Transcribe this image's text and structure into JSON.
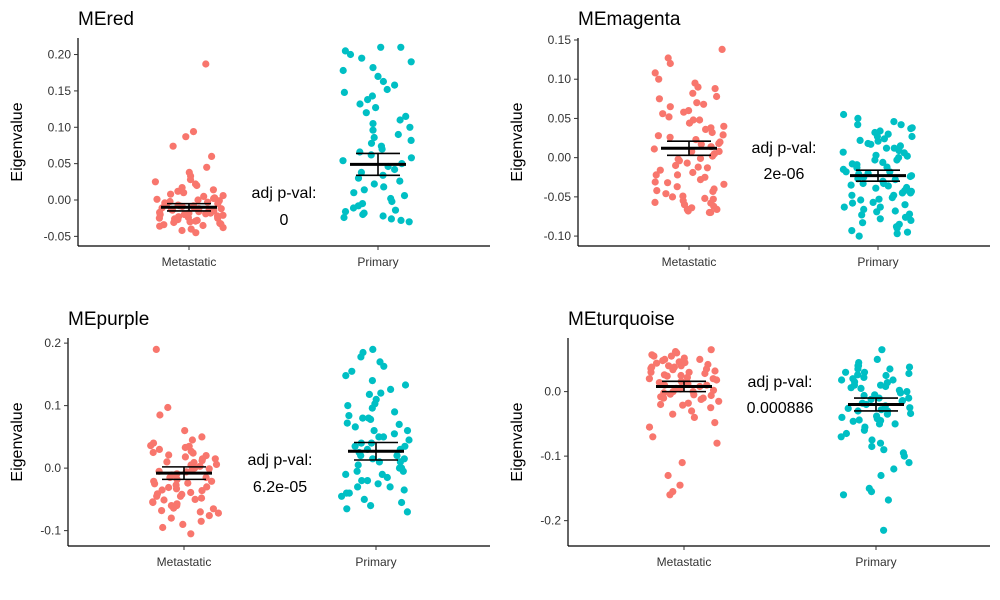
{
  "chart_data": [
    {
      "type": "scatter",
      "title": "MEred",
      "ylabel": "Eigenvalue",
      "categories": [
        "Metastatic",
        "Primary"
      ],
      "ylim": [
        -0.055,
        0.22
      ],
      "yticks": [
        -0.05,
        0.0,
        0.05,
        0.1,
        0.15,
        0.2
      ],
      "ytick_labels": [
        "-0.05",
        "0.00",
        "0.05",
        "0.10",
        "0.15",
        "0.20"
      ],
      "annotation": [
        "adj p-val:",
        "0"
      ],
      "series": [
        {
          "name": "Metastatic",
          "color": "#F8766D",
          "mean": -0.01,
          "ci": [
            -0.015,
            -0.005
          ],
          "values": [
            0.187,
            0.094,
            0.087,
            0.074,
            0.06,
            0.045,
            0.038,
            0.033,
            0.028,
            0.025,
            0.022,
            0.02,
            0.017,
            0.014,
            0.012,
            0.01,
            0.008,
            0.006,
            0.005,
            0.003,
            0.002,
            0.001,
            0.0,
            -0.001,
            -0.002,
            -0.003,
            -0.004,
            -0.005,
            -0.006,
            -0.007,
            -0.008,
            -0.008,
            -0.009,
            -0.01,
            -0.011,
            -0.012,
            -0.012,
            -0.013,
            -0.014,
            -0.015,
            -0.015,
            -0.016,
            -0.017,
            -0.018,
            -0.018,
            -0.019,
            -0.02,
            -0.02,
            -0.021,
            -0.022,
            -0.022,
            -0.023,
            -0.024,
            -0.025,
            -0.025,
            -0.026,
            -0.027,
            -0.028,
            -0.029,
            -0.03,
            -0.031,
            -0.032,
            -0.033,
            -0.034,
            -0.035,
            -0.036,
            -0.038,
            -0.04,
            -0.042,
            -0.045
          ]
        },
        {
          "name": "Primary",
          "color": "#00BFC4",
          "mean": 0.049,
          "ci": [
            0.034,
            0.064
          ],
          "values": [
            0.21,
            0.21,
            0.205,
            0.2,
            0.195,
            0.19,
            0.182,
            0.178,
            0.17,
            0.163,
            0.158,
            0.152,
            0.148,
            0.143,
            0.138,
            0.132,
            0.127,
            0.12,
            0.115,
            0.11,
            0.105,
            0.1,
            0.096,
            0.09,
            0.086,
            0.082,
            0.078,
            0.074,
            0.07,
            0.066,
            0.062,
            0.058,
            0.054,
            0.05,
            0.046,
            0.042,
            0.038,
            0.034,
            0.03,
            0.026,
            0.022,
            0.018,
            0.014,
            0.01,
            0.006,
            0.002,
            -0.002,
            -0.005,
            -0.008,
            -0.011,
            -0.014,
            -0.016,
            -0.018,
            -0.02,
            -0.022,
            -0.024,
            -0.026,
            -0.028,
            -0.03
          ]
        }
      ]
    },
    {
      "type": "scatter",
      "title": "MEmagenta",
      "ylabel": "Eigenvalue",
      "categories": [
        "Metastatic",
        "Primary"
      ],
      "ylim": [
        -0.105,
        0.15
      ],
      "yticks": [
        -0.1,
        -0.05,
        0.0,
        0.05,
        0.1,
        0.15
      ],
      "ytick_labels": [
        "-0.10",
        "-0.05",
        "0.00",
        "0.05",
        "0.10",
        "0.15"
      ],
      "annotation": [
        "adj p-val:",
        "2e-06"
      ],
      "series": [
        {
          "name": "Metastatic",
          "color": "#F8766D",
          "mean": 0.012,
          "ci": [
            0.003,
            0.021
          ],
          "values": [
            0.138,
            0.127,
            0.12,
            0.108,
            0.1,
            0.095,
            0.088,
            0.082,
            0.075,
            0.07,
            0.065,
            0.06,
            0.056,
            0.052,
            0.048,
            0.044,
            0.04,
            0.036,
            0.032,
            0.029,
            0.026,
            0.023,
            0.02,
            0.017,
            0.014,
            0.011,
            0.008,
            0.005,
            0.002,
            -0.001,
            -0.004,
            -0.007,
            -0.01,
            -0.013,
            -0.016,
            -0.019,
            -0.022,
            -0.025,
            -0.028,
            -0.031,
            -0.034,
            -0.037,
            -0.04,
            -0.043,
            -0.046,
            -0.049,
            -0.052,
            -0.055,
            -0.058,
            -0.062,
            -0.066,
            -0.07,
            -0.07,
            -0.068,
            -0.066,
            -0.064,
            -0.06,
            -0.057,
            -0.053,
            -0.05,
            0.09,
            0.078,
            0.068,
            0.058,
            0.048,
            0.038,
            0.028,
            0.018,
            0.008,
            -0.002,
            -0.012,
            -0.022,
            -0.032,
            -0.042
          ]
        },
        {
          "name": "Primary",
          "color": "#00BFC4",
          "mean": -0.023,
          "ci": [
            -0.03,
            -0.016
          ],
          "values": [
            0.055,
            0.05,
            0.046,
            0.042,
            0.038,
            0.034,
            0.03,
            0.027,
            0.024,
            0.021,
            0.018,
            0.015,
            0.012,
            0.009,
            0.006,
            0.003,
            0.0,
            -0.003,
            -0.006,
            -0.009,
            -0.012,
            -0.015,
            -0.018,
            -0.021,
            -0.024,
            -0.027,
            -0.03,
            -0.033,
            -0.036,
            -0.039,
            -0.042,
            -0.045,
            -0.048,
            -0.051,
            -0.054,
            -0.057,
            -0.06,
            -0.063,
            -0.066,
            -0.069,
            -0.072,
            -0.076,
            -0.08,
            -0.085,
            -0.09,
            -0.095,
            -0.1,
            -0.097,
            -0.093,
            -0.088,
            -0.083,
            -0.078,
            -0.073,
            -0.068,
            -0.063,
            -0.058,
            -0.053,
            -0.048,
            -0.043,
            -0.038,
            -0.033,
            -0.028,
            -0.023,
            -0.018,
            -0.013,
            -0.008,
            -0.003,
            0.002,
            0.007,
            0.012,
            0.017,
            0.022,
            0.027,
            0.032,
            0.037,
            0.042,
            -0.02,
            -0.025,
            -0.035,
            -0.045
          ]
        }
      ]
    },
    {
      "type": "scatter",
      "title": "MEpurple",
      "ylabel": "Eigenvalue",
      "categories": [
        "Metastatic",
        "Primary"
      ],
      "ylim": [
        -0.115,
        0.205
      ],
      "yticks": [
        -0.1,
        0.0,
        0.1,
        0.2
      ],
      "ytick_labels": [
        "-0.1",
        "0.0",
        "0.1",
        "0.2"
      ],
      "annotation": [
        "adj p-val:",
        "6.2e-05"
      ],
      "series": [
        {
          "name": "Metastatic",
          "color": "#F8766D",
          "mean": -0.008,
          "ci": [
            -0.018,
            0.002
          ],
          "values": [
            0.19,
            0.097,
            0.085,
            0.06,
            0.05,
            0.045,
            0.04,
            0.036,
            0.033,
            0.03,
            0.027,
            0.024,
            0.021,
            0.018,
            0.015,
            0.012,
            0.009,
            0.006,
            0.003,
            0.0,
            -0.003,
            -0.006,
            -0.009,
            -0.012,
            -0.015,
            -0.018,
            -0.021,
            -0.024,
            -0.027,
            -0.03,
            -0.033,
            -0.036,
            -0.039,
            -0.042,
            -0.045,
            -0.048,
            -0.051,
            -0.054,
            -0.057,
            -0.06,
            -0.064,
            -0.068,
            -0.072,
            -0.076,
            -0.08,
            -0.085,
            -0.09,
            -0.095,
            -0.105,
            0.025,
            0.015,
            0.005,
            -0.005,
            -0.015,
            -0.025,
            -0.035,
            -0.045,
            -0.055,
            -0.065,
            0.035,
            0.02,
            0.01,
            -0.001,
            -0.011,
            -0.021,
            -0.031,
            -0.041,
            -0.05,
            -0.06,
            -0.07
          ]
        },
        {
          "name": "Primary",
          "color": "#00BFC4",
          "mean": 0.027,
          "ci": [
            0.013,
            0.041
          ],
          "values": [
            0.19,
            0.185,
            0.178,
            0.17,
            0.163,
            0.155,
            0.148,
            0.14,
            0.133,
            0.126,
            0.118,
            0.11,
            0.103,
            0.096,
            0.09,
            0.084,
            0.078,
            0.072,
            0.066,
            0.06,
            0.055,
            0.05,
            0.045,
            0.04,
            0.035,
            0.03,
            0.025,
            0.02,
            0.015,
            0.01,
            0.005,
            0.0,
            -0.005,
            -0.01,
            -0.015,
            -0.02,
            -0.025,
            -0.03,
            -0.035,
            -0.04,
            -0.045,
            -0.05,
            -0.055,
            -0.06,
            -0.065,
            -0.07,
            0.12,
            0.1,
            0.08,
            0.06,
            0.04,
            0.02,
            0.0,
            -0.02,
            -0.04,
            0.07,
            0.05,
            0.03,
            0.01,
            -0.01,
            -0.03,
            0.08,
            0.035,
            0.015,
            -0.005
          ]
        }
      ]
    },
    {
      "type": "scatter",
      "title": "MEturquoise",
      "ylabel": "Eigenvalue",
      "categories": [
        "Metastatic",
        "Primary"
      ],
      "ylim": [
        -0.23,
        0.08
      ],
      "yticks": [
        -0.2,
        -0.1,
        0.0
      ],
      "ytick_labels": [
        "-0.2",
        "-0.1",
        "0.0"
      ],
      "annotation": [
        "adj p-val:",
        "0.000886"
      ],
      "series": [
        {
          "name": "Metastatic",
          "color": "#F8766D",
          "mean": 0.008,
          "ci": [
            0.0,
            0.016
          ],
          "values": [
            0.065,
            0.062,
            0.06,
            0.057,
            0.055,
            0.052,
            0.05,
            0.048,
            0.046,
            0.044,
            0.042,
            0.04,
            0.038,
            0.036,
            0.034,
            0.032,
            0.03,
            0.028,
            0.026,
            0.024,
            0.022,
            0.02,
            0.018,
            0.016,
            0.014,
            0.012,
            0.01,
            0.008,
            0.006,
            0.004,
            0.002,
            0.0,
            -0.002,
            -0.004,
            -0.006,
            -0.008,
            -0.01,
            -0.012,
            -0.015,
            -0.018,
            -0.021,
            -0.025,
            -0.03,
            -0.035,
            -0.04,
            -0.048,
            -0.055,
            -0.07,
            -0.08,
            -0.11,
            -0.13,
            -0.145,
            -0.155,
            -0.16,
            0.05,
            0.04,
            0.03,
            0.02,
            0.01,
            0.0,
            -0.01,
            -0.02,
            0.045,
            0.035,
            0.025,
            0.015,
            0.005,
            -0.005,
            0.055,
            0.038
          ]
        },
        {
          "name": "Primary",
          "color": "#00BFC4",
          "mean": -0.02,
          "ci": [
            -0.03,
            -0.01
          ],
          "values": [
            0.065,
            0.05,
            0.045,
            0.04,
            0.035,
            0.03,
            0.026,
            0.022,
            0.018,
            0.014,
            0.01,
            0.006,
            0.002,
            -0.002,
            -0.006,
            -0.01,
            -0.014,
            -0.018,
            -0.022,
            -0.026,
            -0.03,
            -0.034,
            -0.038,
            -0.042,
            -0.046,
            -0.05,
            -0.055,
            -0.06,
            -0.065,
            -0.07,
            -0.075,
            -0.08,
            -0.085,
            -0.09,
            -0.095,
            -0.1,
            -0.11,
            -0.12,
            -0.13,
            -0.15,
            -0.155,
            -0.16,
            -0.168,
            -0.215,
            0.04,
            0.03,
            0.02,
            0.01,
            0.0,
            -0.01,
            -0.02,
            -0.03,
            -0.04,
            -0.05,
            0.035,
            0.025,
            0.015,
            0.005,
            -0.005,
            -0.015,
            -0.025,
            -0.035,
            -0.045,
            0.038,
            0.028,
            0.018,
            0.008,
            -0.012,
            -0.028,
            -0.044
          ]
        }
      ]
    }
  ]
}
